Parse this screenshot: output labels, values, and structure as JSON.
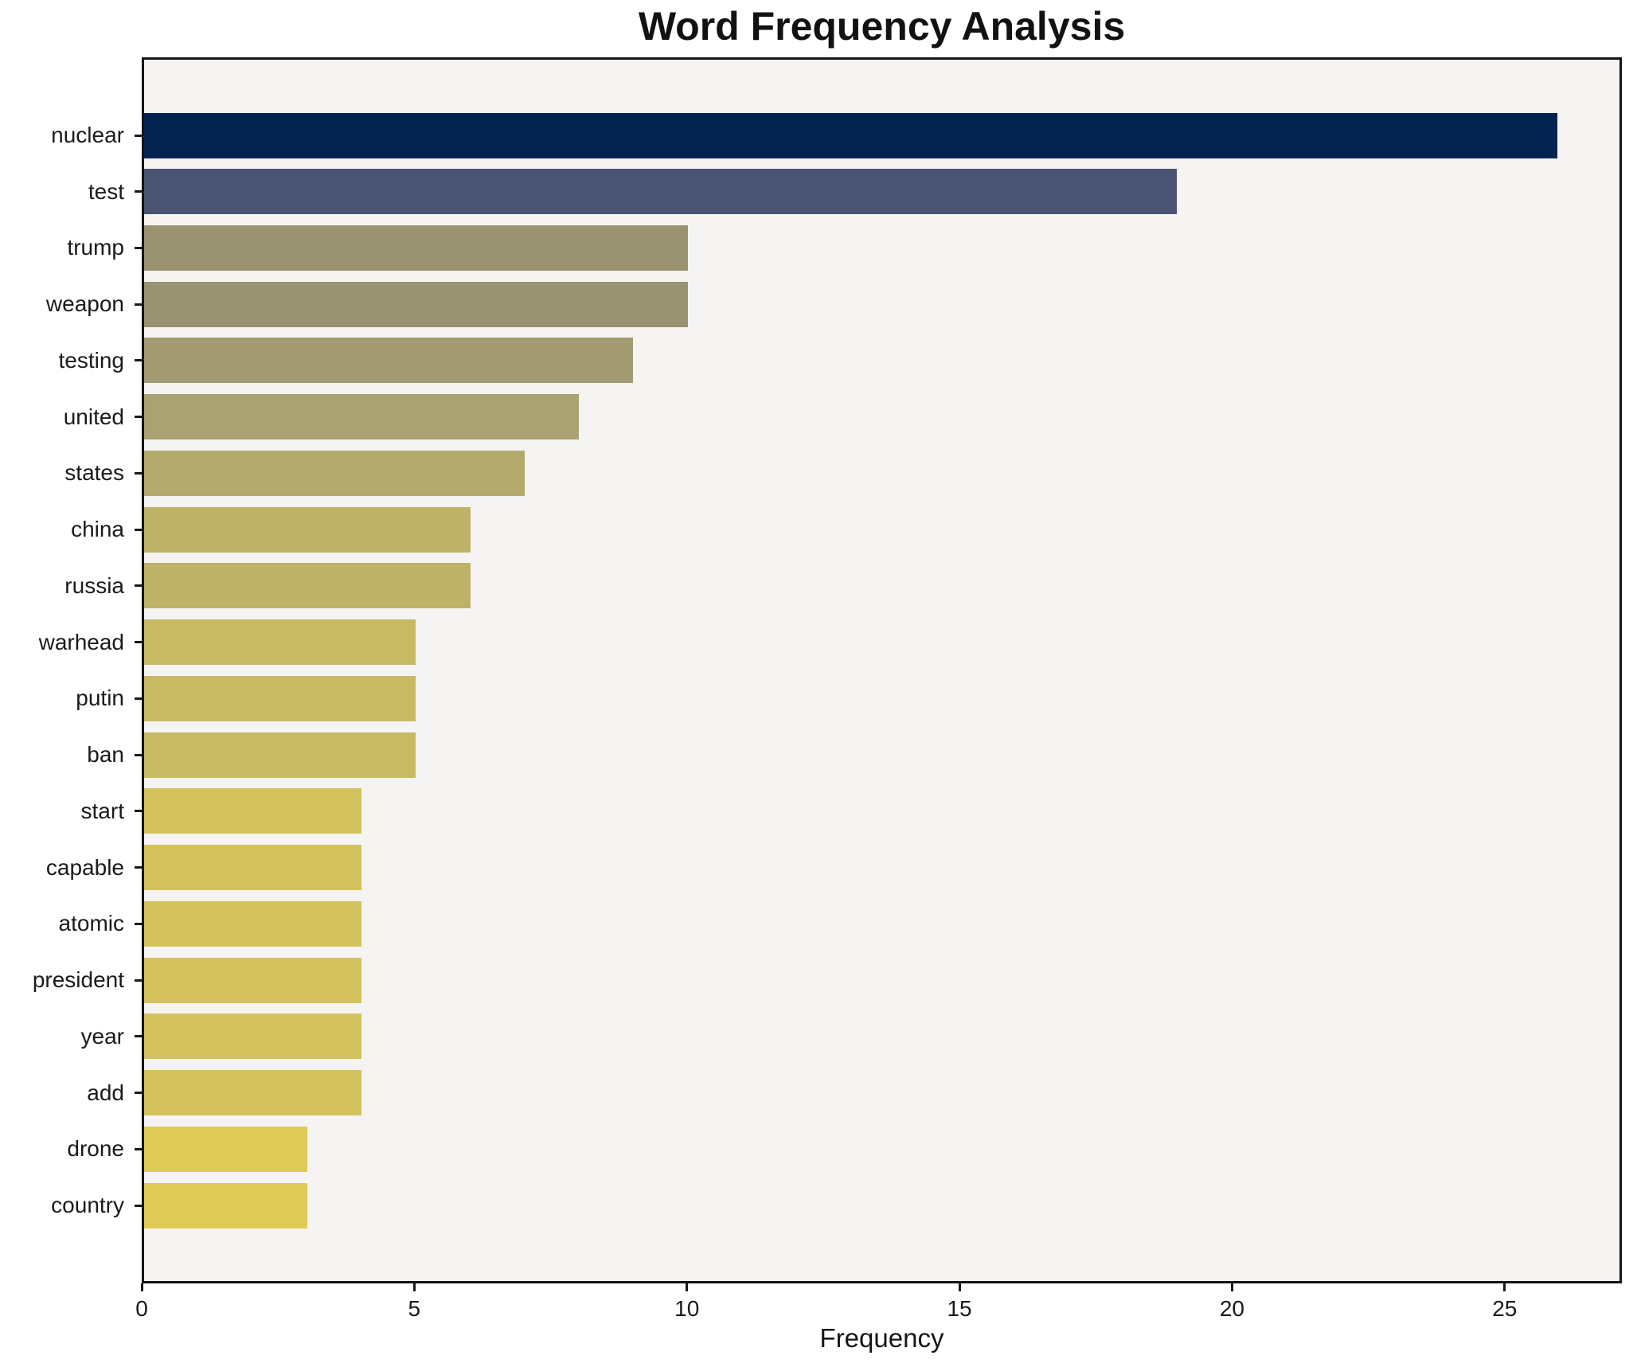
{
  "chart_data": {
    "type": "bar",
    "orientation": "horizontal",
    "title": "Word Frequency Analysis",
    "xlabel": "Frequency",
    "ylabel": "",
    "categories": [
      "nuclear",
      "test",
      "trump",
      "weapon",
      "testing",
      "united",
      "states",
      "china",
      "russia",
      "warhead",
      "putin",
      "ban",
      "start",
      "capable",
      "atomic",
      "president",
      "year",
      "add",
      "drone",
      "country"
    ],
    "values": [
      26,
      19,
      10,
      10,
      9,
      8,
      7,
      6,
      6,
      5,
      5,
      5,
      4,
      4,
      4,
      4,
      4,
      4,
      3,
      3
    ],
    "bar_colors": [
      "#02234e",
      "#4a5371",
      "#999372",
      "#999372",
      "#a29b73",
      "#aaa272",
      "#b3aa6d",
      "#beb168",
      "#beb168",
      "#c8b963",
      "#c8b963",
      "#c8b963",
      "#d3c25d",
      "#d3c25d",
      "#d3c25d",
      "#d3c25d",
      "#d3c25d",
      "#d3c25d",
      "#ddcb55",
      "#ddcb55"
    ],
    "xticks": [
      "0",
      "5",
      "10",
      "15",
      "20",
      "25"
    ],
    "xtick_values": [
      0,
      5,
      10,
      15,
      20,
      25
    ],
    "xlim": [
      0,
      27.15
    ],
    "grid": false,
    "legend_position": "none",
    "plot_background": "#f5f4f2",
    "figure_background": "#ffffff",
    "spine_color": "#141414",
    "text_color": "#1a1a1a"
  }
}
